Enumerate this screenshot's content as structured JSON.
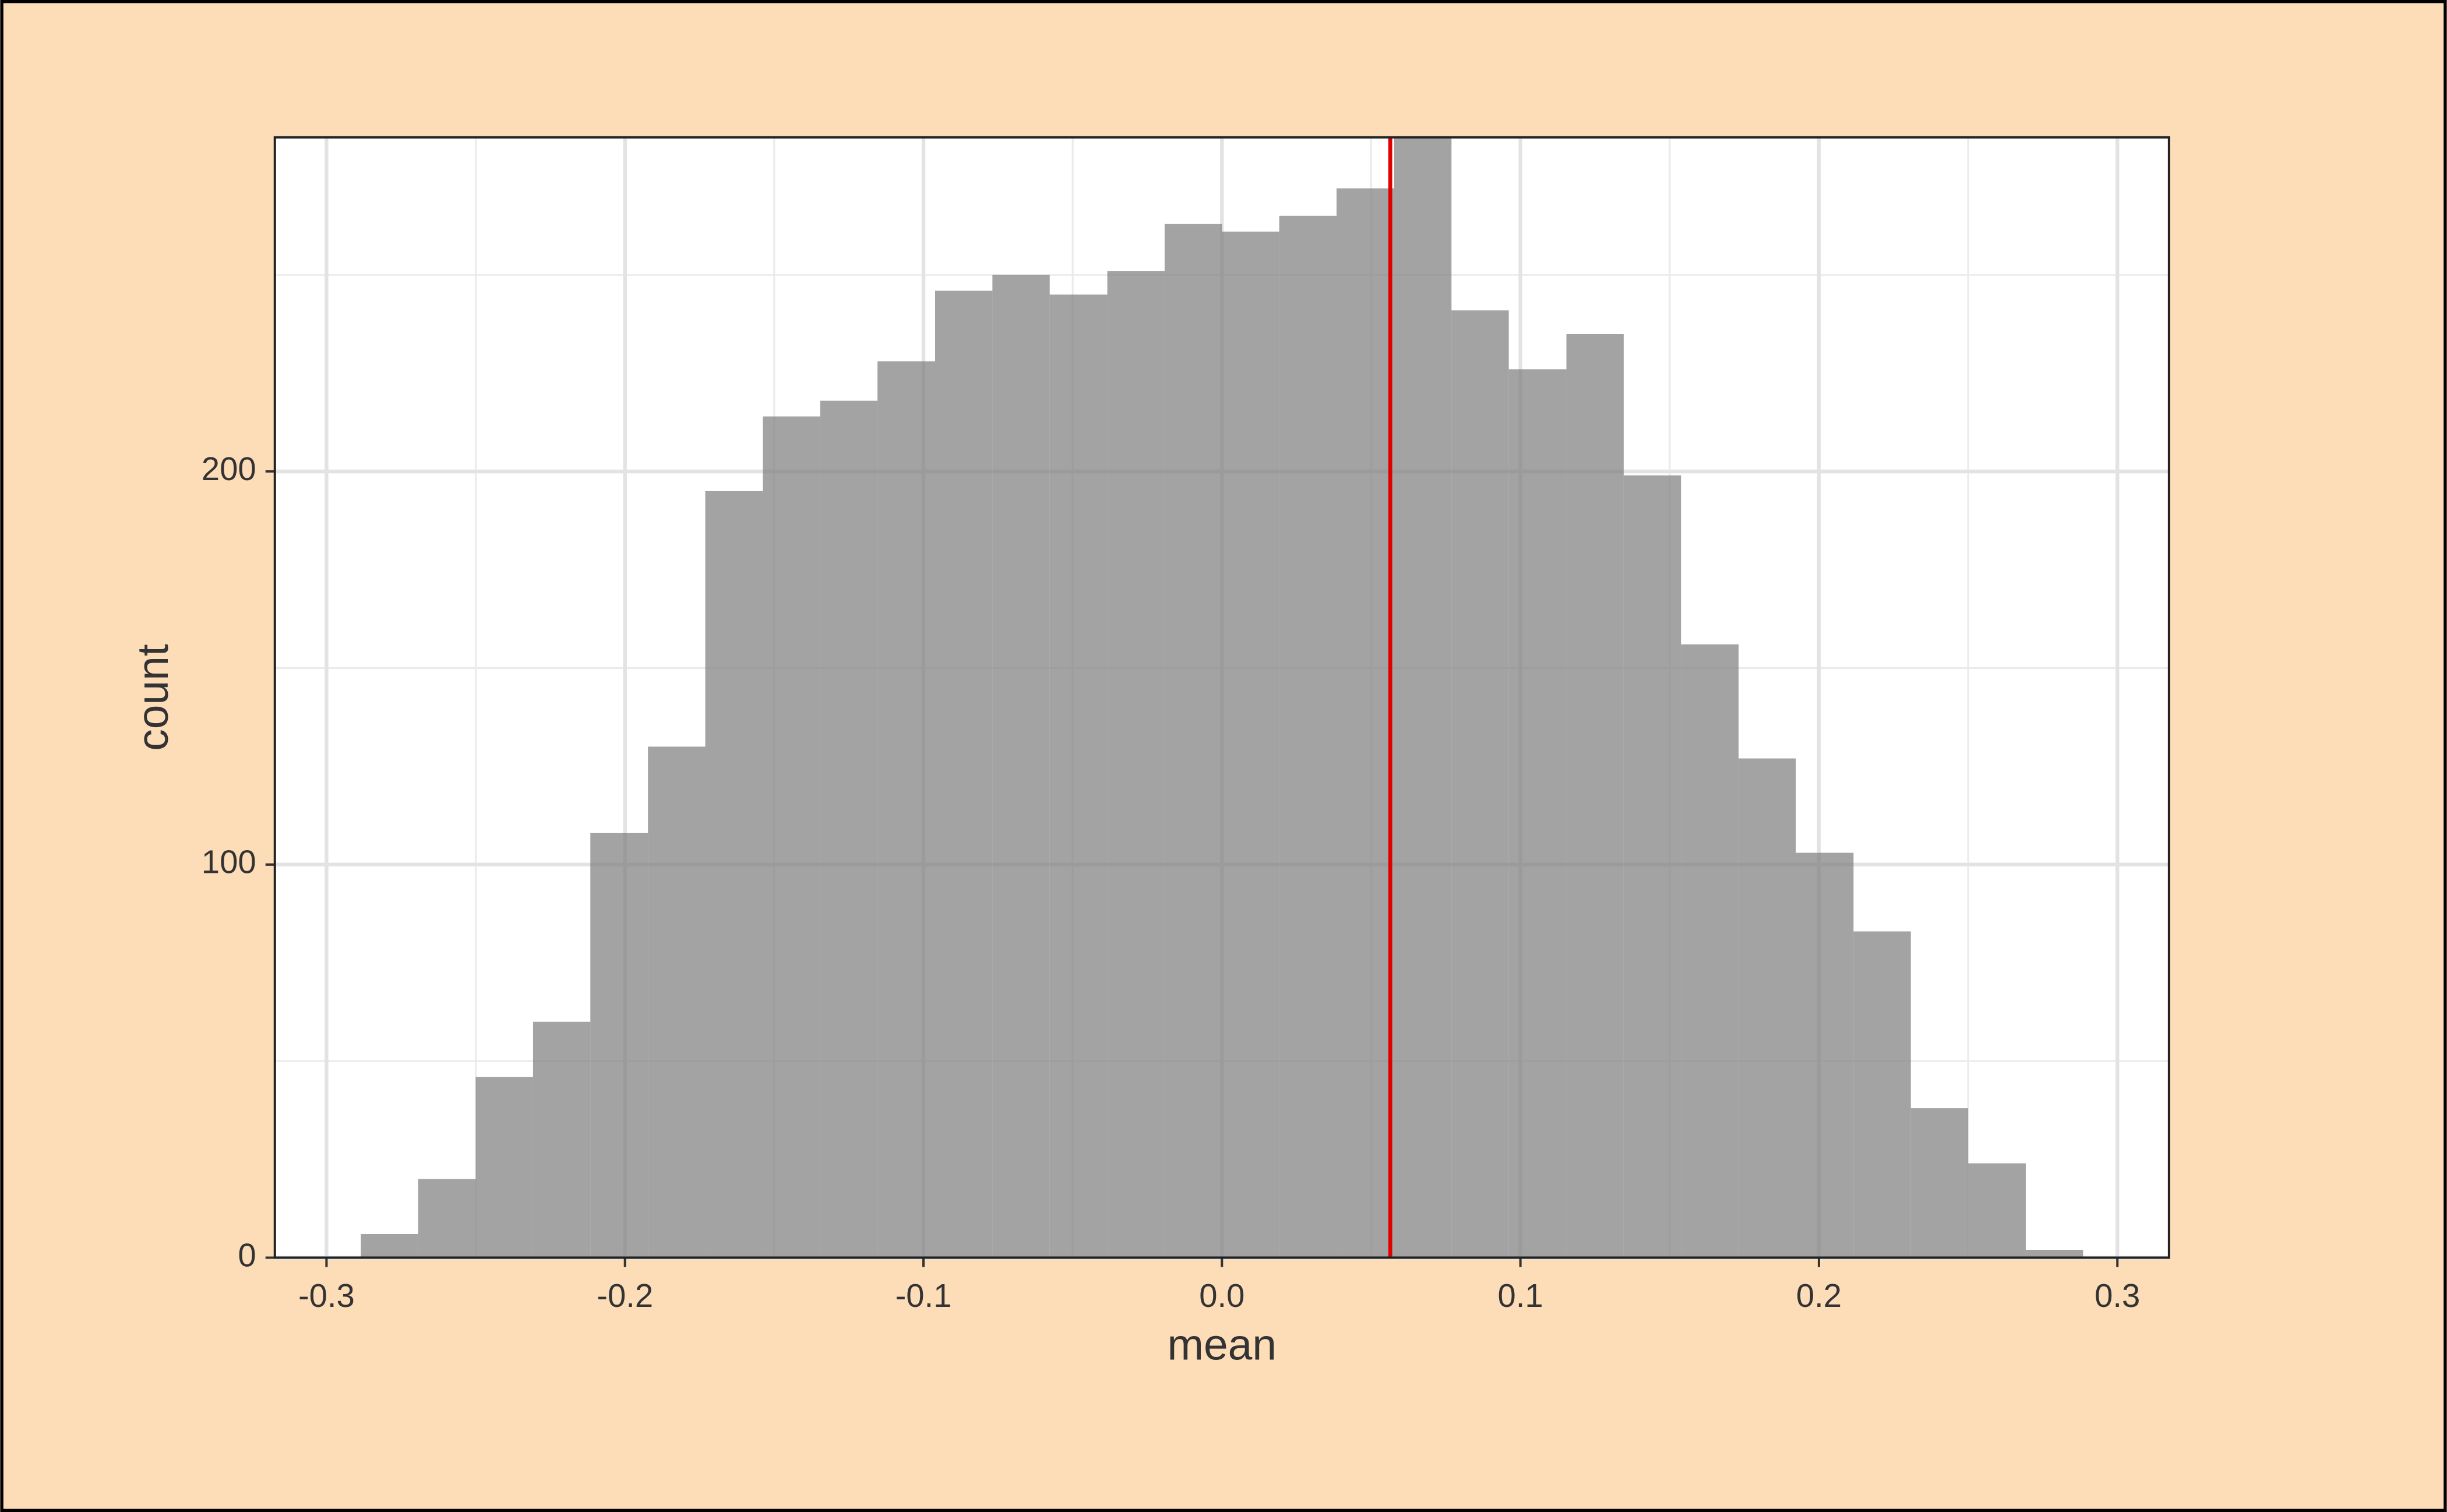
{
  "chart_data": {
    "type": "histogram",
    "x_label": "mean",
    "y_label": "count",
    "bins": [
      -0.2885,
      -0.2693,
      -0.25,
      -0.2308,
      -0.2116,
      -0.1923,
      -0.1731,
      -0.1538,
      -0.1346,
      -0.1154,
      -0.0961,
      -0.0769,
      -0.0577,
      -0.0384,
      -0.0192,
      0.0,
      0.0192,
      0.0384,
      0.0577,
      0.0769,
      0.0961,
      0.1154,
      0.1346,
      0.1538,
      0.1731,
      0.1923,
      0.2116,
      0.2308,
      0.25,
      0.2693,
      0.2885
    ],
    "values": [
      6,
      20,
      46,
      60,
      108,
      130,
      195,
      214,
      218,
      228,
      246,
      250,
      245,
      251,
      263,
      261,
      265,
      272,
      285,
      241,
      226,
      235,
      199,
      156,
      127,
      103,
      83,
      38,
      24,
      2
    ],
    "color": "#808080",
    "xlim": [
      -0.3173,
      0.3173
    ],
    "xticks": [
      -0.3,
      -0.2,
      -0.1,
      {
        "value": 0,
        "label": "0.0"
      },
      0.1,
      0.2,
      0.3
    ],
    "x_minor_grid": [
      -0.25,
      -0.15,
      -0.05,
      0.05,
      0.15,
      0.25
    ],
    "ylim": [
      0,
      285
    ],
    "yticks": [
      0,
      100,
      200
    ],
    "y_minor_grid": [
      50,
      150,
      250
    ],
    "grid": true,
    "vline": {
      "x": 0.0564,
      "color": "#e00000"
    }
  }
}
